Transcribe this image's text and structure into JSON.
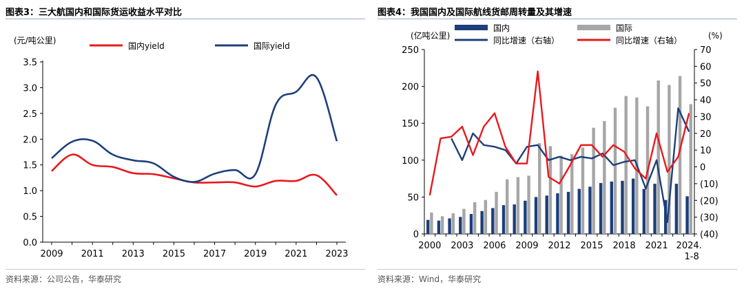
{
  "colors": {
    "red": "#e8181e",
    "navy": "#1d3f7a",
    "gray_bar": "#a6a6a6",
    "rule": "#9aa9c4"
  },
  "left": {
    "title": "图表3：三大航国内和国际货运收益水平对比",
    "source": "资料来源：公司公告，华泰研究",
    "chart_data": {
      "type": "line",
      "yunit": "(元/吨公里)",
      "x": [
        2009,
        2010,
        2011,
        2012,
        2013,
        2014,
        2015,
        2016,
        2017,
        2018,
        2019,
        2020,
        2021,
        2022,
        2023
      ],
      "x_ticks": [
        "2009",
        "2011",
        "2013",
        "2015",
        "2017",
        "2019",
        "2021",
        "2023"
      ],
      "x_tick_values": [
        2009,
        2011,
        2013,
        2015,
        2017,
        2019,
        2021,
        2023
      ],
      "y_ticks": [
        "0.0",
        "0.5",
        "1.0",
        "1.5",
        "2.0",
        "2.5",
        "3.0",
        "3.5"
      ],
      "ylim": [
        0,
        3.5
      ],
      "series": [
        {
          "name": "国内yield",
          "color": "#e8181e",
          "values": [
            1.38,
            1.7,
            1.5,
            1.46,
            1.34,
            1.32,
            1.24,
            1.16,
            1.16,
            1.16,
            1.08,
            1.19,
            1.19,
            1.3,
            0.91
          ]
        },
        {
          "name": "国际yield",
          "color": "#1d3f7a",
          "values": [
            1.63,
            1.95,
            1.97,
            1.7,
            1.59,
            1.53,
            1.27,
            1.17,
            1.33,
            1.4,
            1.32,
            2.67,
            2.92,
            3.2,
            1.96
          ]
        }
      ]
    }
  },
  "right": {
    "title": "图表4：我国国内及国际航线货邮周转量及其增速",
    "source": "资料来源：Wind，华泰研究",
    "chart_data": {
      "type": "bar+line",
      "y_left_unit": "(亿吨公里)",
      "y_right_unit": "(%)",
      "x": [
        "2000",
        "2001",
        "2002",
        "2003",
        "2004",
        "2005",
        "2006",
        "2007",
        "2008",
        "2009",
        "2010",
        "2011",
        "2012",
        "2013",
        "2014",
        "2015",
        "2016",
        "2017",
        "2018",
        "2019",
        "2020",
        "2021",
        "2022",
        "2023",
        "2024.1-8"
      ],
      "x_ticks": [
        "2000",
        "2003",
        "2006",
        "2009",
        "2012",
        "2015",
        "2018",
        "2021",
        "2024."
      ],
      "x_tick_index": [
        0,
        3,
        6,
        9,
        12,
        15,
        18,
        21,
        24
      ],
      "x_tick_sub": "1-8",
      "y_left_ticks": [
        "0",
        "50",
        "100",
        "150",
        "200",
        "250"
      ],
      "y_left_lim": [
        0,
        250
      ],
      "y_right_ticks": [
        "(40)",
        "(30)",
        "(20)",
        "(10)",
        "0",
        "10",
        "20",
        "30",
        "40",
        "50",
        "60",
        "70"
      ],
      "y_right_lim": [
        -40,
        70
      ],
      "bar_series": [
        {
          "name": "国内",
          "color": "#1d3f7a",
          "values": [
            19,
            18,
            21,
            23,
            27,
            31,
            35,
            39,
            40,
            45,
            50,
            52,
            55,
            57,
            61,
            64,
            69,
            71,
            72,
            75,
            61,
            68,
            46,
            68,
            51
          ]
        },
        {
          "name": "国际",
          "color": "#a6a6a6",
          "values": [
            29,
            24,
            28,
            34,
            43,
            46,
            57,
            74,
            77,
            79,
            123,
            119,
            106,
            108,
            117,
            144,
            153,
            171,
            187,
            185,
            173,
            208,
            202,
            214,
            176
          ]
        }
      ],
      "line_series": [
        {
          "name": "同比增速（右轴）",
          "color": "#1d3f7a",
          "target": "国内",
          "values": [
            -9,
            null,
            17,
            4,
            20,
            13,
            12,
            10,
            2,
            12,
            13,
            4,
            6,
            4,
            6,
            5,
            8,
            1,
            3,
            4,
            -13,
            4,
            -33,
            35,
            21
          ]
        },
        {
          "name": "同比增速（右轴）",
          "color": "#e8181e",
          "target": "国际",
          "values": [
            -17,
            17,
            18,
            24,
            7,
            24,
            32,
            12,
            2,
            2,
            57,
            -6,
            -10,
            1,
            13,
            13,
            6,
            13,
            9,
            -1,
            -7,
            20,
            -3,
            6,
            32
          ]
        }
      ]
    }
  }
}
